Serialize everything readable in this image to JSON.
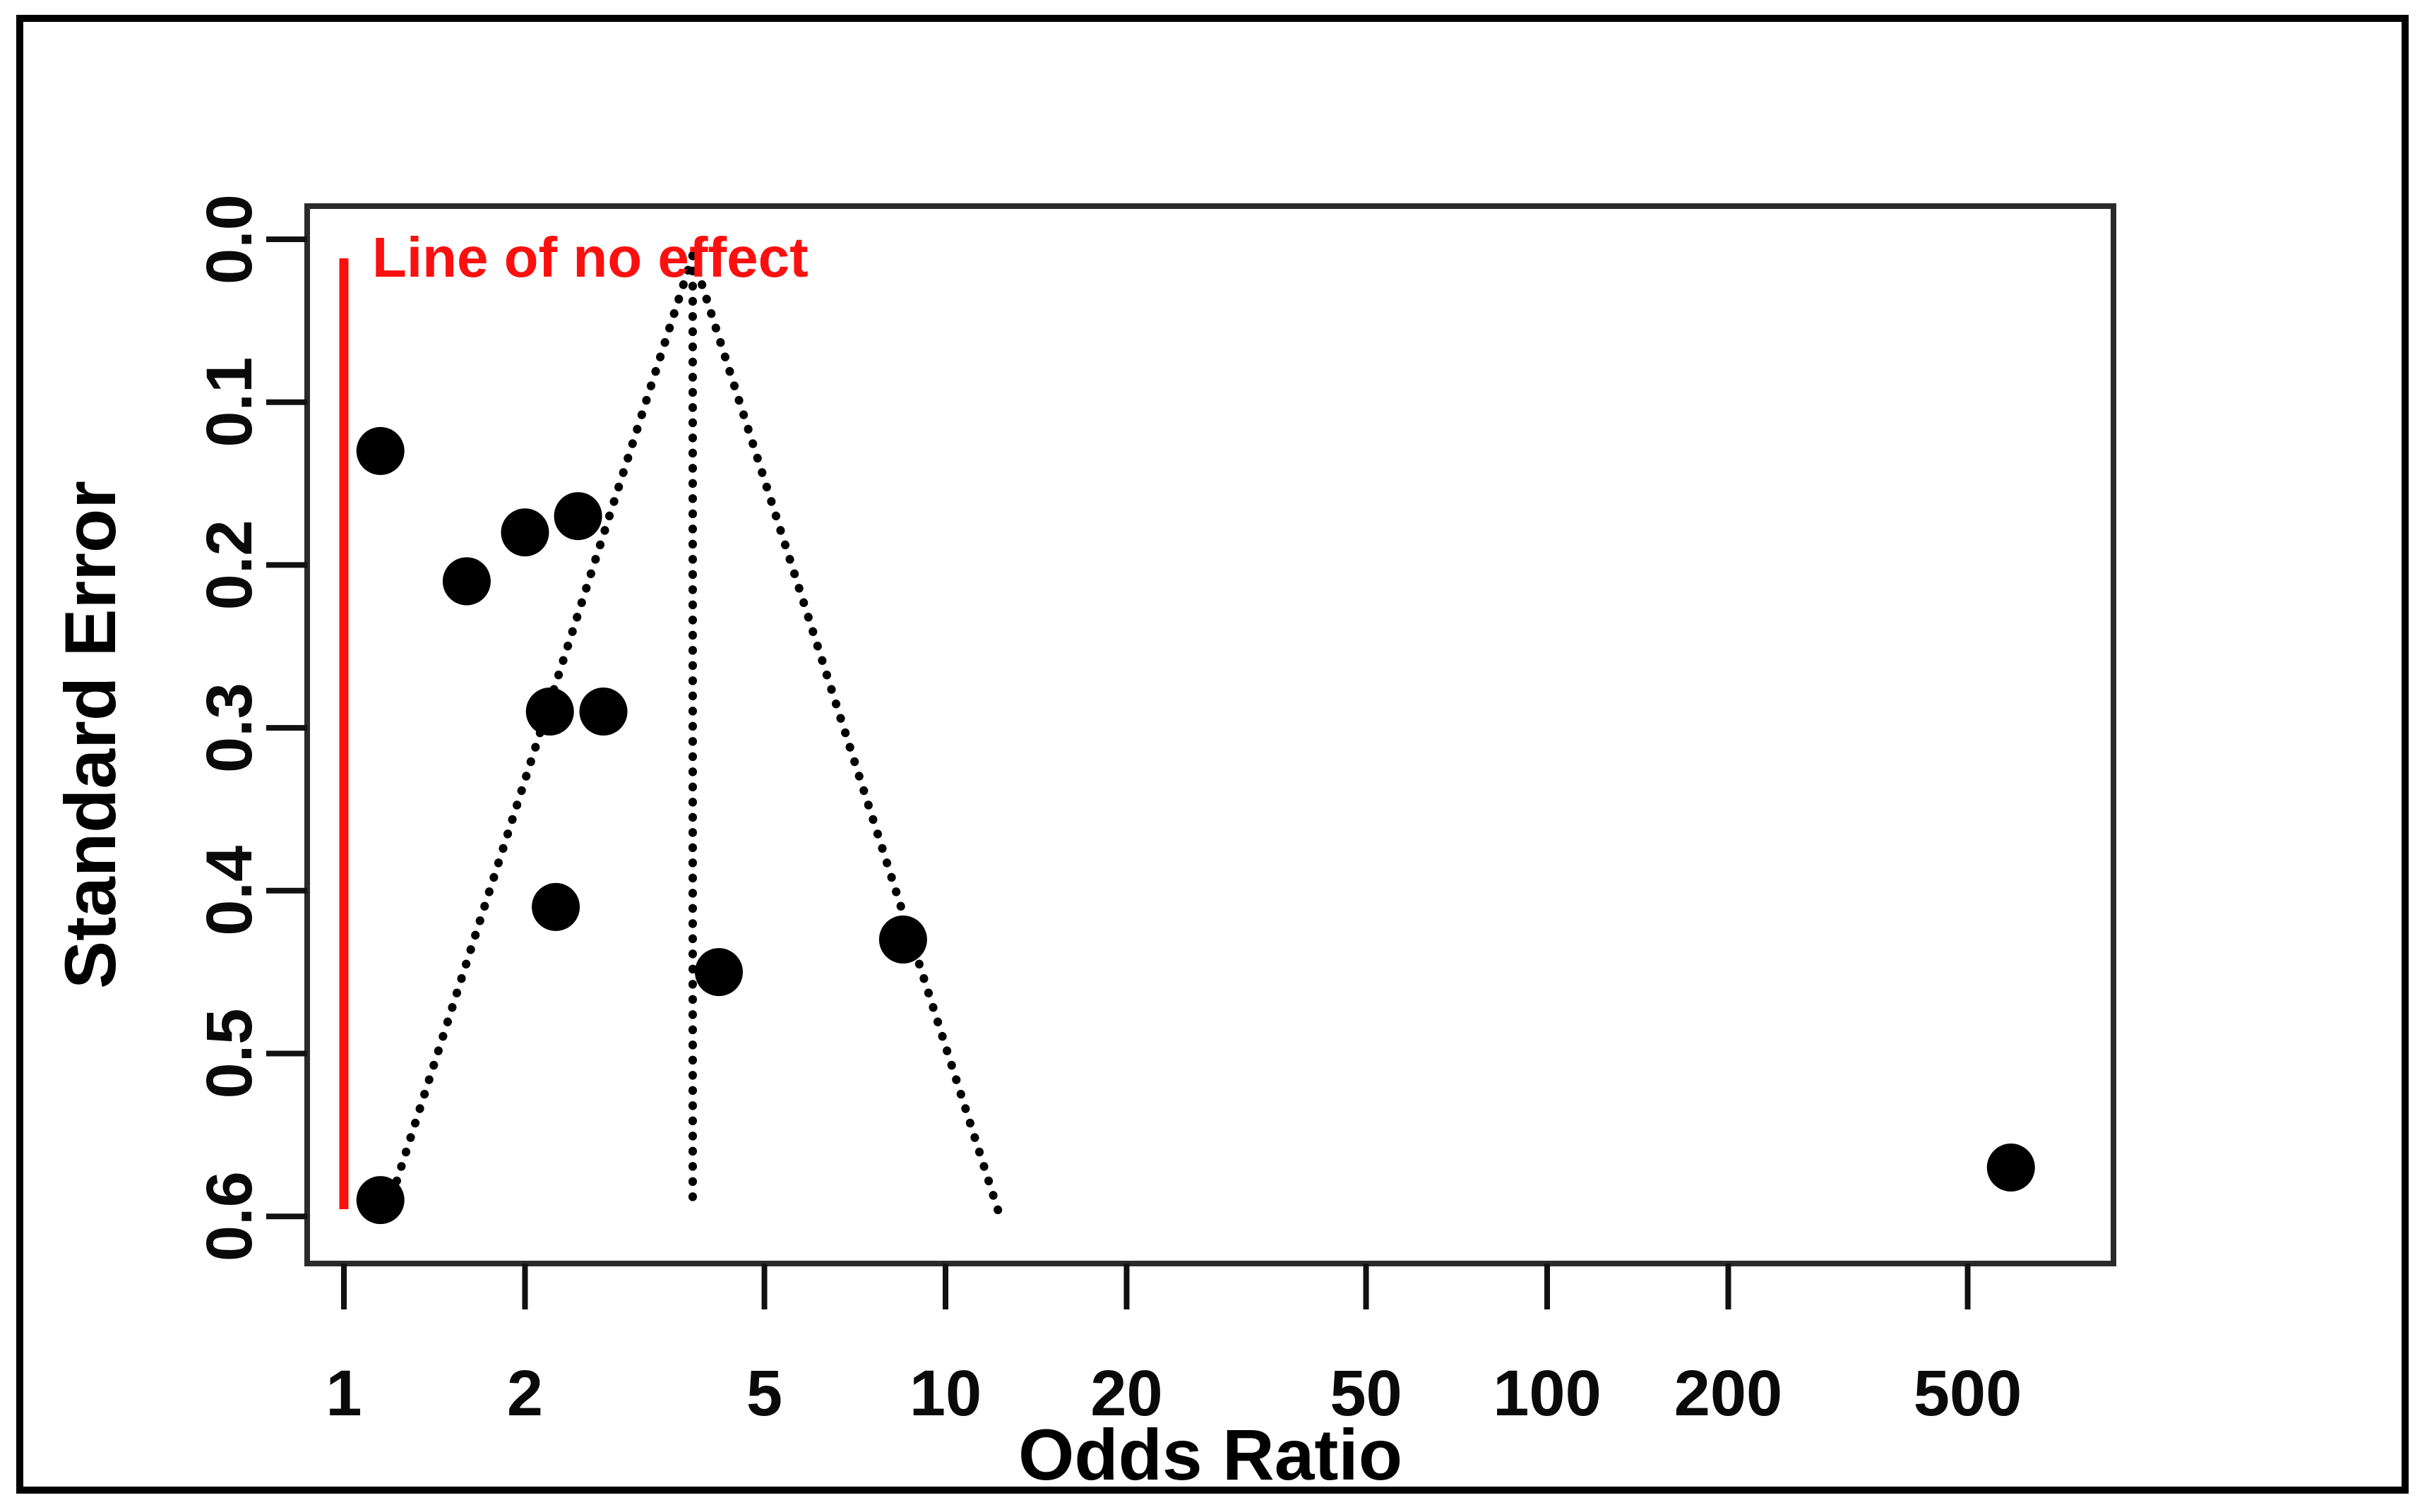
{
  "chart_data": {
    "type": "scatter",
    "subtype": "meta-analysis-funnel-plot",
    "title": "",
    "xlabel": "Odds Ratio",
    "ylabel": "Standard Error",
    "x_scale": "log10",
    "y_axis_inverted": true,
    "grid": false,
    "legend_position": "none",
    "x_ticks": [
      "1",
      "2",
      "5",
      "10",
      "20",
      "50",
      "100",
      "200",
      "500"
    ],
    "y_ticks": [
      "0.0",
      "0.1",
      "0.2",
      "0.3",
      "0.4",
      "0.5",
      "0.6"
    ],
    "x_range_odds_ratio": [
      0.87,
      880
    ],
    "y_range_standard_error": [
      -0.02,
      0.63
    ],
    "points": [
      {
        "or": 1.15,
        "se": 0.13
      },
      {
        "or": 2.0,
        "se": 0.18
      },
      {
        "or": 2.45,
        "se": 0.17
      },
      {
        "or": 1.6,
        "se": 0.21
      },
      {
        "or": 2.2,
        "se": 0.29
      },
      {
        "or": 2.7,
        "se": 0.29
      },
      {
        "or": 2.25,
        "se": 0.41
      },
      {
        "or": 4.2,
        "se": 0.45
      },
      {
        "or": 8.5,
        "se": 0.43
      },
      {
        "or": 1.15,
        "se": 0.59
      },
      {
        "or": 590,
        "se": 0.57
      }
    ],
    "funnel": {
      "apex_or": 3.8,
      "z_value": 1.96,
      "se_top": 0.01,
      "se_bottom": 0.6,
      "line_style": "dotted",
      "has_center_line": true
    },
    "no_effect_line": {
      "or": 1,
      "label": "Line of no effect",
      "color": "#fb1010"
    }
  },
  "colors": {
    "point": "#000000",
    "axis": "#2b2b2b",
    "figure_border": "#000000",
    "background": "#ffffff",
    "accent_red": "#fb1010"
  }
}
